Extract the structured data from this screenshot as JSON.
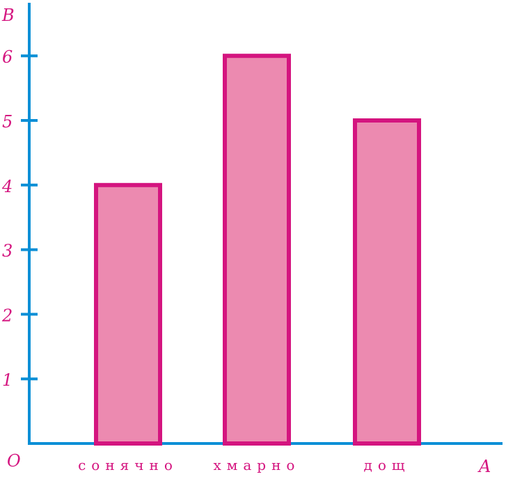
{
  "chart_data": {
    "type": "bar",
    "categories": [
      "сонячно",
      "хмарно",
      "дощ"
    ],
    "values": [
      4,
      6,
      5
    ],
    "title": "",
    "xlabel": "A",
    "ylabel": "B",
    "origin_label": "O",
    "ylim": [
      0,
      7
    ],
    "yticks": [
      1,
      2,
      3,
      4,
      5,
      6
    ],
    "grid": false,
    "colors": {
      "axis": "#0a8fd6",
      "bar_fill": "#ec8ab0",
      "bar_stroke": "#d4147f",
      "text": "#d4147f"
    }
  }
}
